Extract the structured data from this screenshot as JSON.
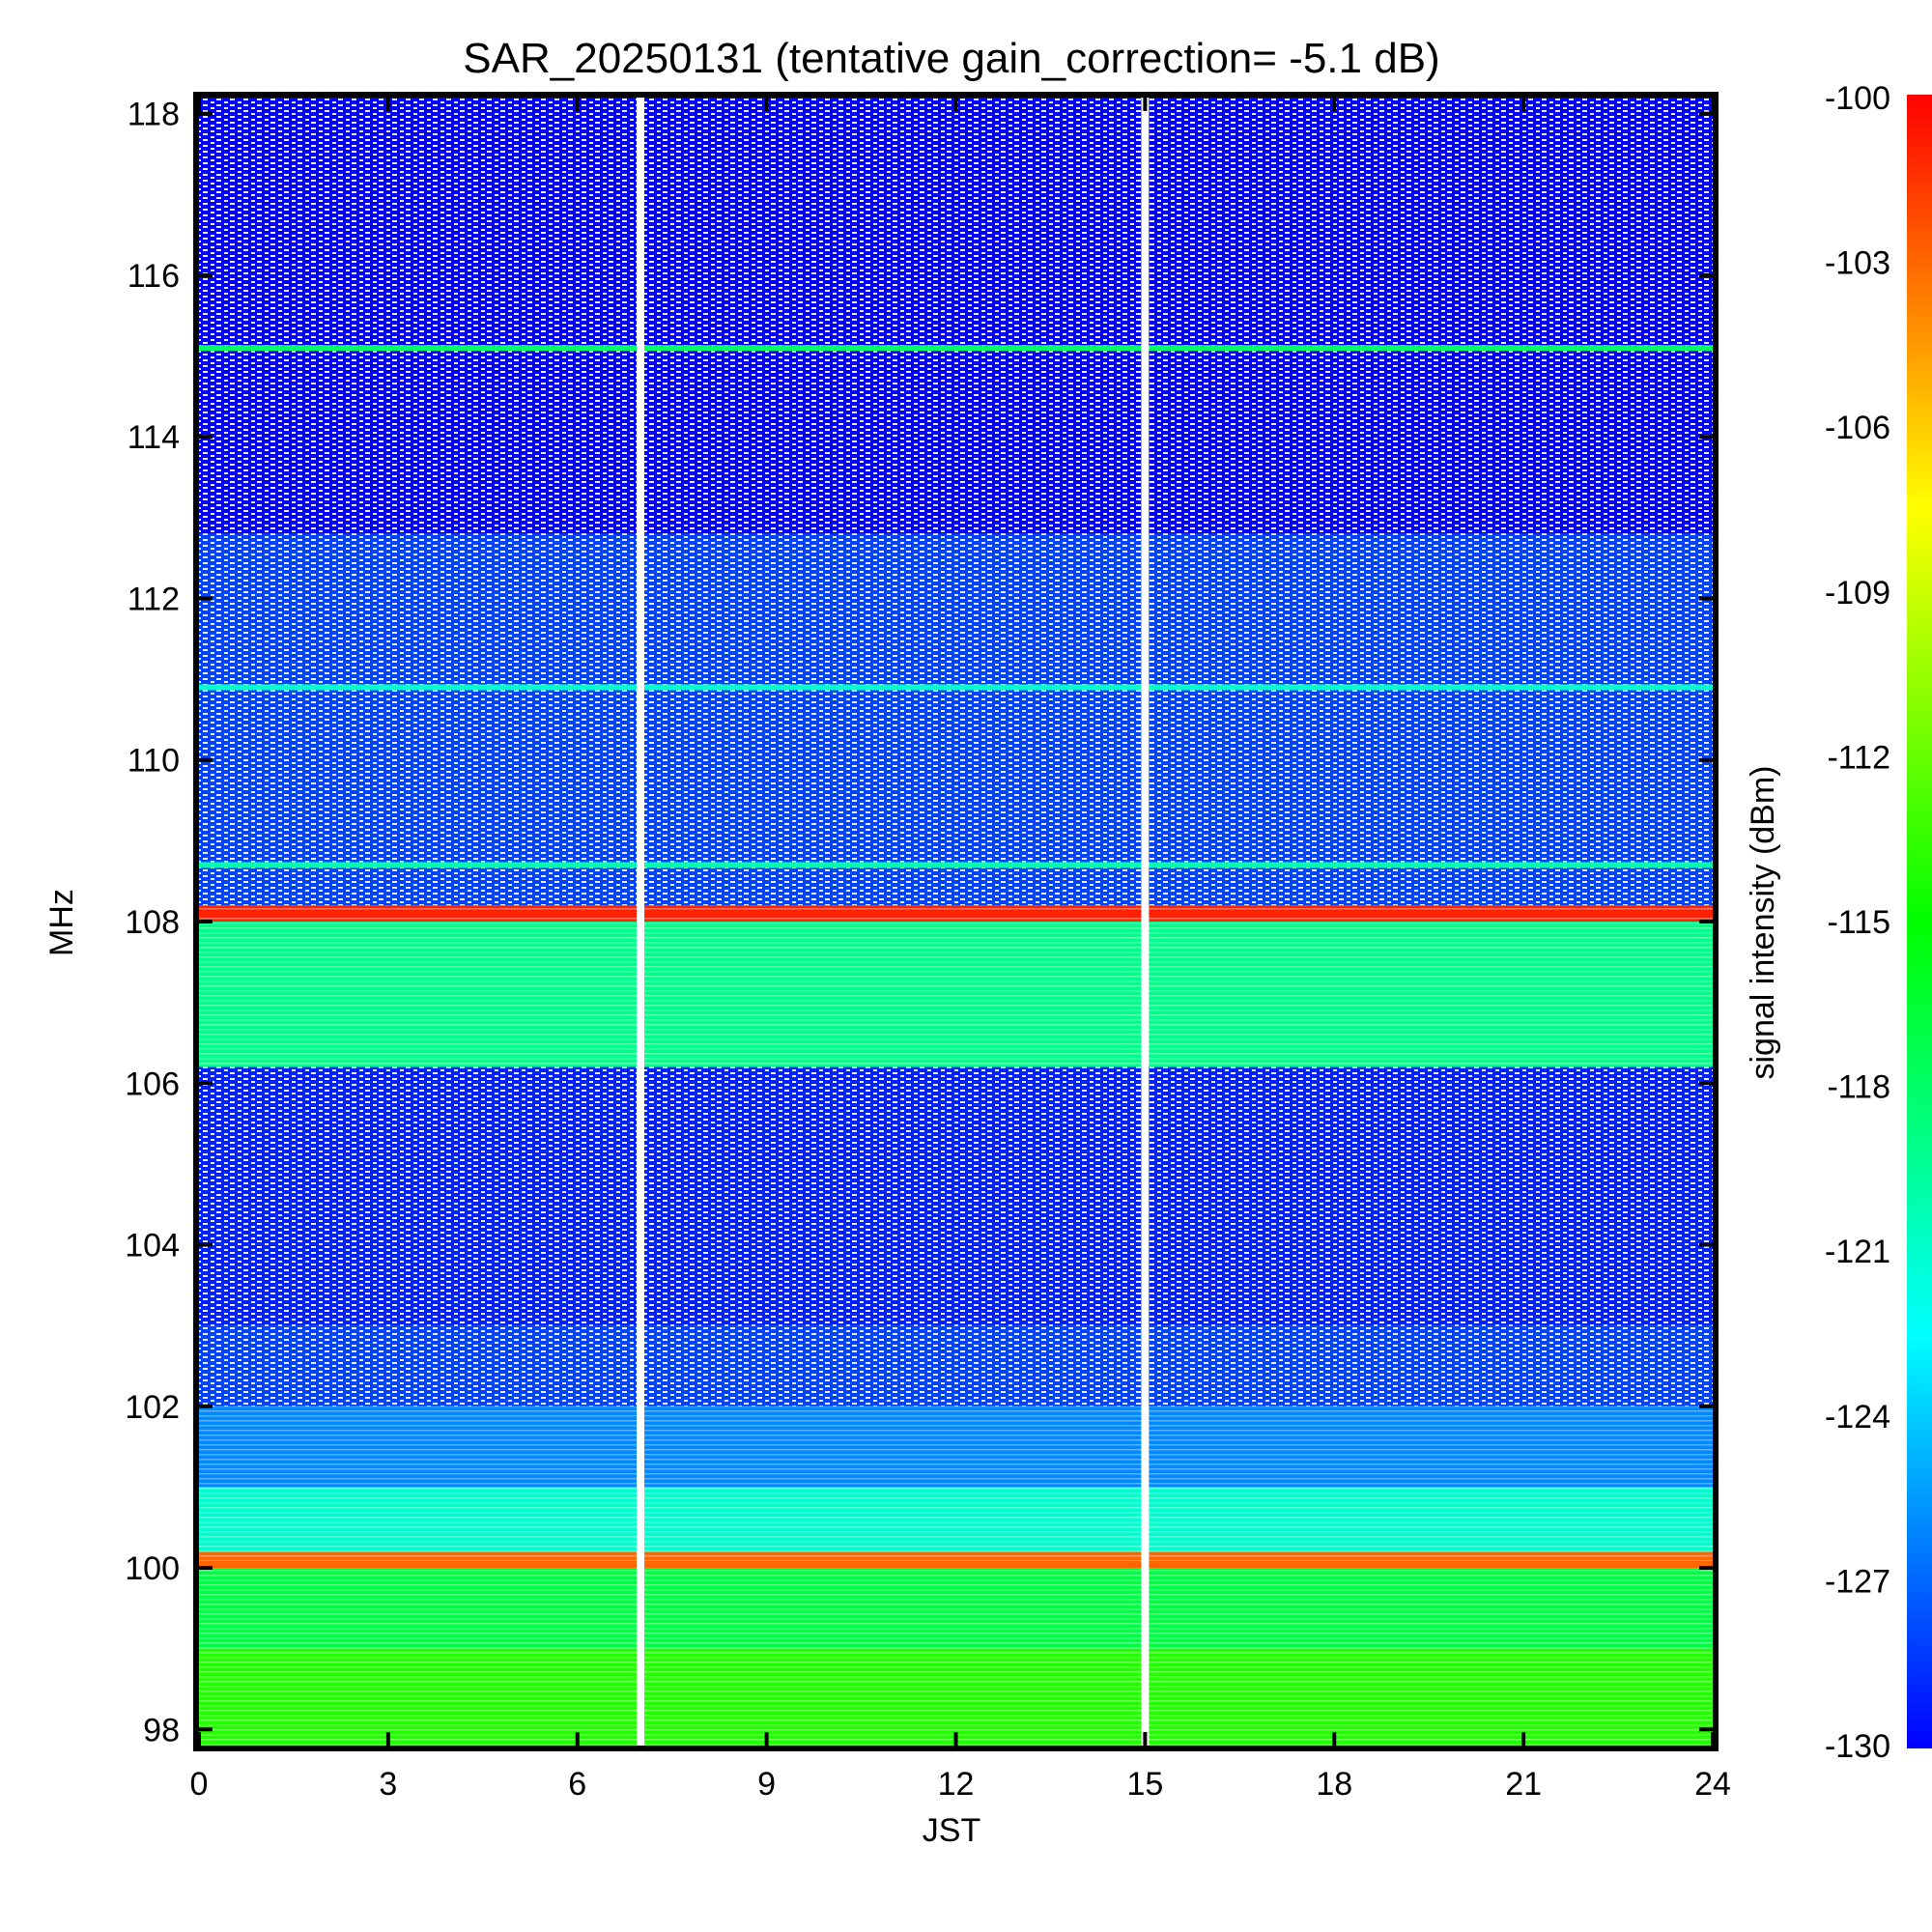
{
  "chart_data": {
    "type": "heatmap",
    "title": "SAR_20250131 (tentative gain_correction= -5.1 dB)",
    "xlabel": "JST",
    "ylabel": "MHz",
    "colorbar_label": "signal intensity (dBm)",
    "x_range": [
      0,
      24
    ],
    "y_range": [
      97.8,
      118.2
    ],
    "x_ticks": [
      "0",
      "3",
      "6",
      "9",
      "12",
      "15",
      "18",
      "21",
      "24"
    ],
    "y_ticks": [
      "98",
      "100",
      "102",
      "104",
      "106",
      "108",
      "110",
      "112",
      "114",
      "116",
      "118"
    ],
    "colorbar_range": [
      -130,
      -100
    ],
    "colorbar_ticks": [
      "-100",
      "-103",
      "-106",
      "-109",
      "-112",
      "-115",
      "-118",
      "-121",
      "-124",
      "-127",
      "-130"
    ],
    "colormap": [
      "#0000ff",
      "#00ffff",
      "#00ff00",
      "#ffff00",
      "#ff0000"
    ],
    "data_gaps_jst": [
      7.0,
      15.0
    ],
    "frequency_bands": [
      {
        "from": 97.8,
        "to": 99.0,
        "intensity_dBm": -114
      },
      {
        "from": 99.0,
        "to": 100.0,
        "intensity_dBm": -117
      },
      {
        "from": 100.0,
        "to": 100.2,
        "intensity_dBm": -103
      },
      {
        "from": 100.2,
        "to": 101.0,
        "intensity_dBm": -121
      },
      {
        "from": 101.0,
        "to": 102.0,
        "intensity_dBm": -126
      },
      {
        "from": 102.0,
        "to": 103.0,
        "intensity_dBm": -128
      },
      {
        "from": 103.0,
        "to": 106.2,
        "intensity_dBm": -129
      },
      {
        "from": 106.2,
        "to": 108.0,
        "intensity_dBm": -119
      },
      {
        "from": 108.0,
        "to": 108.2,
        "intensity_dBm": -101
      },
      {
        "from": 108.2,
        "to": 112.8,
        "intensity_dBm": -128
      },
      {
        "from": 112.8,
        "to": 118.2,
        "intensity_dBm": -130
      }
    ],
    "strong_lines": [
      {
        "freq": 100.05,
        "intensity_dBm": -103
      },
      {
        "freq": 108.1,
        "intensity_dBm": -101
      },
      {
        "freq": 110.9,
        "intensity_dBm": -121
      },
      {
        "freq": 108.7,
        "intensity_dBm": -120
      },
      {
        "freq": 115.1,
        "intensity_dBm": -118
      }
    ]
  }
}
